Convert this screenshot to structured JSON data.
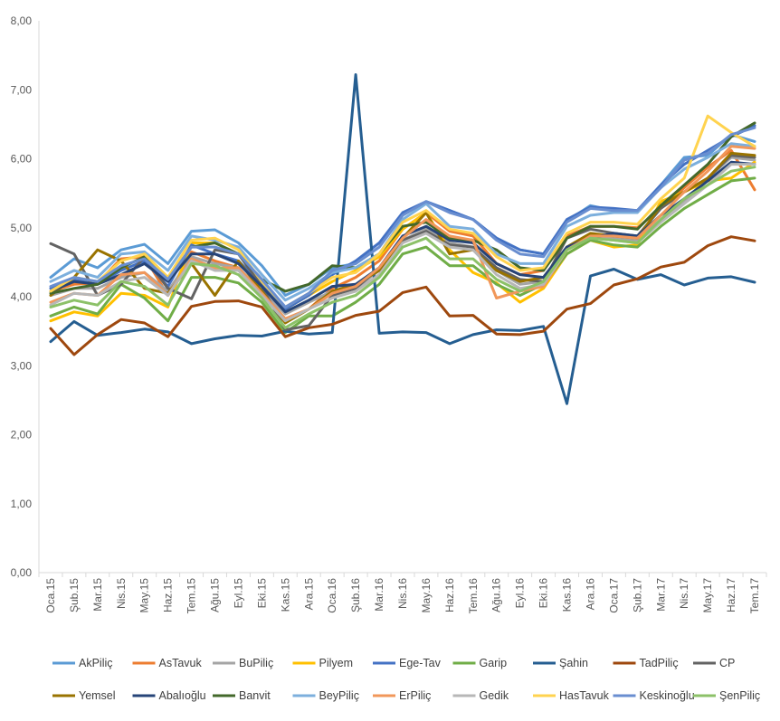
{
  "chart_data": {
    "type": "line",
    "title": "",
    "xlabel": "",
    "ylabel": "",
    "ylim": [
      0,
      8
    ],
    "y_ticks": [
      "0,00",
      "1,00",
      "2,00",
      "3,00",
      "4,00",
      "5,00",
      "6,00",
      "7,00",
      "8,00"
    ],
    "grid": "none",
    "legend_position": "bottom",
    "categories": [
      "Oca.15",
      "Şub.15",
      "Mar.15",
      "Nis.15",
      "May.15",
      "Haz.15",
      "Tem.15",
      "Ağu.15",
      "Eyl.15",
      "Eki.15",
      "Kas.15",
      "Ara.15",
      "Oca.16",
      "Şub.16",
      "Mar.16",
      "Nis.16",
      "May.16",
      "Haz.16",
      "Tem.16",
      "Ağu.16",
      "Eyl.16",
      "Eki.16",
      "Kas.16",
      "Ara.16",
      "Oca.17",
      "Şub.17",
      "Mar.17",
      "Nis.17",
      "May.17",
      "Haz.17",
      "Tem.17"
    ],
    "series": [
      {
        "name": "AkPiliç",
        "color": "#5B9BD5",
        "values": [
          4.28,
          4.55,
          4.42,
          4.68,
          4.76,
          4.48,
          4.95,
          4.97,
          4.78,
          4.45,
          4.02,
          4.18,
          4.42,
          4.48,
          4.72,
          5.18,
          5.38,
          5.25,
          5.12,
          4.85,
          4.68,
          4.62,
          5.1,
          5.32,
          5.25,
          5.25,
          5.62,
          6.02,
          6.05,
          6.35,
          6.25
        ]
      },
      {
        "name": "AsTavuk",
        "color": "#ED7D31",
        "values": [
          4.08,
          4.18,
          4.2,
          4.55,
          4.58,
          4.02,
          4.65,
          4.52,
          4.42,
          4.05,
          3.68,
          3.82,
          4.12,
          4.28,
          4.52,
          4.98,
          5.22,
          4.95,
          4.88,
          4.48,
          4.32,
          4.38,
          4.88,
          5.02,
          5.02,
          5.0,
          5.28,
          5.58,
          5.88,
          6.12,
          5.55
        ]
      },
      {
        "name": "BuPiliç",
        "color": "#A5A5A5",
        "values": [
          4.02,
          4.12,
          4.12,
          4.28,
          4.35,
          4.08,
          4.58,
          4.48,
          4.42,
          4.08,
          3.75,
          3.92,
          4.08,
          4.12,
          4.38,
          4.82,
          4.98,
          4.78,
          4.72,
          4.38,
          4.18,
          4.22,
          4.72,
          4.88,
          4.85,
          4.82,
          5.12,
          5.38,
          5.72,
          6.02,
          5.98
        ]
      },
      {
        "name": "Pilyem",
        "color": "#FFC000",
        "values": [
          3.65,
          3.78,
          3.72,
          4.05,
          4.02,
          3.85,
          4.78,
          4.78,
          4.62,
          4.22,
          3.82,
          4.02,
          4.22,
          4.38,
          4.58,
          4.98,
          5.22,
          4.68,
          4.35,
          4.2,
          3.92,
          4.12,
          4.62,
          4.82,
          4.72,
          4.75,
          5.38,
          5.52,
          5.68,
          5.72,
          5.95
        ]
      },
      {
        "name": "Ege-Tav",
        "color": "#4472C4",
        "values": [
          4.12,
          4.25,
          4.18,
          4.38,
          4.52,
          4.15,
          4.75,
          4.62,
          4.52,
          4.18,
          3.82,
          4.02,
          4.32,
          4.52,
          4.78,
          5.22,
          5.38,
          5.25,
          5.12,
          4.85,
          4.68,
          4.62,
          5.12,
          5.3,
          5.28,
          5.25,
          5.62,
          5.92,
          6.12,
          6.32,
          6.48
        ]
      },
      {
        "name": "Garip",
        "color": "#70AD47",
        "values": [
          3.72,
          3.85,
          3.75,
          4.18,
          3.98,
          3.65,
          4.28,
          4.28,
          4.2,
          3.92,
          3.48,
          3.72,
          3.72,
          3.92,
          4.18,
          4.62,
          4.72,
          4.45,
          4.45,
          4.18,
          4.02,
          4.18,
          4.62,
          4.82,
          4.75,
          4.72,
          5.02,
          5.28,
          5.48,
          5.68,
          5.72
        ]
      },
      {
        "name": "Şahin",
        "color": "#255E91",
        "values": [
          3.35,
          3.64,
          3.44,
          3.48,
          3.53,
          3.49,
          3.32,
          3.39,
          3.44,
          3.43,
          3.5,
          3.46,
          3.48,
          7.22,
          3.47,
          3.49,
          3.48,
          3.32,
          3.45,
          3.52,
          3.51,
          3.57,
          2.45,
          4.3,
          4.4,
          4.25,
          4.32,
          4.17,
          4.27,
          4.29,
          4.21
        ]
      },
      {
        "name": "TadPiliç",
        "color": "#9E480E",
        "values": [
          3.54,
          3.16,
          3.45,
          3.67,
          3.62,
          3.42,
          3.86,
          3.93,
          3.94,
          3.85,
          3.42,
          3.55,
          3.6,
          3.73,
          3.79,
          4.06,
          4.14,
          3.72,
          3.73,
          3.46,
          3.45,
          3.5,
          3.82,
          3.9,
          4.17,
          4.26,
          4.43,
          4.5,
          4.74,
          4.87,
          4.81
        ]
      },
      {
        "name": "CP",
        "color": "#636363",
        "values": [
          4.77,
          4.62,
          4.02,
          4.18,
          4.58,
          4.12,
          3.97,
          4.68,
          4.62,
          4.15,
          3.52,
          3.58,
          4.02,
          4.12,
          4.42,
          4.82,
          4.95,
          4.75,
          4.72,
          4.42,
          4.25,
          4.22,
          4.85,
          4.98,
          4.92,
          4.88,
          5.28,
          5.52,
          5.72,
          6.05,
          6.02
        ]
      },
      {
        "name": "Yemsel",
        "color": "#997300",
        "values": [
          4.02,
          4.28,
          4.68,
          4.52,
          4.12,
          4.05,
          4.48,
          4.02,
          4.52,
          4.08,
          3.62,
          3.82,
          4.08,
          4.18,
          4.38,
          4.85,
          5.22,
          4.62,
          4.68,
          4.38,
          4.22,
          4.28,
          4.72,
          4.92,
          4.88,
          4.85,
          5.32,
          5.52,
          5.72,
          6.08,
          6.05
        ]
      },
      {
        "name": "Abalıoğlu",
        "color": "#264478",
        "values": [
          4.08,
          4.22,
          4.18,
          4.32,
          4.48,
          4.22,
          4.62,
          4.62,
          4.48,
          4.15,
          3.78,
          3.95,
          4.15,
          4.18,
          4.42,
          4.88,
          5.02,
          4.82,
          4.78,
          4.48,
          4.32,
          4.28,
          4.72,
          4.85,
          4.92,
          4.88,
          5.18,
          5.42,
          5.68,
          5.95,
          5.92
        ]
      },
      {
        "name": "Banvit",
        "color": "#43682B",
        "values": [
          4.05,
          4.12,
          4.18,
          4.42,
          4.58,
          4.25,
          4.72,
          4.78,
          4.62,
          4.25,
          4.08,
          4.18,
          4.45,
          4.42,
          4.62,
          5.02,
          5.08,
          4.85,
          4.82,
          4.68,
          4.42,
          4.38,
          4.85,
          5.02,
          5.02,
          4.98,
          5.32,
          5.62,
          5.92,
          6.32,
          6.52
        ]
      },
      {
        "name": "BeyPiliç",
        "color": "#7CAFDD",
        "values": [
          4.22,
          4.38,
          4.28,
          4.62,
          4.65,
          4.38,
          4.88,
          4.82,
          4.72,
          4.32,
          3.95,
          4.12,
          4.35,
          4.42,
          4.62,
          5.12,
          5.35,
          5.02,
          4.98,
          4.62,
          4.48,
          4.48,
          5.02,
          5.18,
          5.22,
          5.22,
          5.58,
          5.85,
          6.02,
          6.22,
          6.18
        ]
      },
      {
        "name": "ErPiliç",
        "color": "#F1975A",
        "values": [
          3.92,
          4.05,
          4.02,
          4.32,
          4.35,
          4.02,
          4.55,
          4.42,
          4.42,
          4.05,
          3.68,
          3.82,
          4.05,
          4.15,
          4.42,
          4.85,
          5.12,
          4.88,
          4.82,
          3.98,
          4.08,
          4.15,
          4.68,
          4.88,
          4.88,
          4.85,
          5.18,
          5.52,
          5.82,
          6.18,
          6.15
        ]
      },
      {
        "name": "Gedik",
        "color": "#B7B7B7",
        "values": [
          3.88,
          4.05,
          4.02,
          4.22,
          4.28,
          4.02,
          4.52,
          4.38,
          4.38,
          4.02,
          3.65,
          3.82,
          3.98,
          4.08,
          4.32,
          4.78,
          4.92,
          4.72,
          4.68,
          4.32,
          4.12,
          4.18,
          4.68,
          4.85,
          4.82,
          4.78,
          5.08,
          5.35,
          5.62,
          5.92,
          5.92
        ]
      },
      {
        "name": "HasTavuk",
        "color": "#FFD34F",
        "values": [
          4.08,
          4.28,
          4.22,
          4.52,
          4.62,
          4.28,
          4.82,
          4.85,
          4.68,
          4.22,
          3.85,
          4.05,
          4.28,
          4.35,
          4.62,
          5.08,
          5.25,
          4.98,
          4.92,
          4.58,
          4.38,
          4.42,
          4.92,
          5.08,
          5.08,
          5.05,
          5.42,
          5.72,
          6.62,
          6.38,
          6.18
        ]
      },
      {
        "name": "Keskinoğlu",
        "color": "#698ED0",
        "values": [
          4.15,
          4.28,
          4.22,
          4.45,
          4.55,
          4.25,
          4.72,
          4.72,
          4.62,
          4.25,
          3.85,
          4.05,
          4.38,
          4.48,
          4.72,
          5.18,
          5.38,
          5.22,
          5.12,
          4.82,
          4.62,
          4.58,
          5.08,
          5.28,
          5.25,
          5.25,
          5.58,
          5.98,
          6.08,
          6.35,
          6.45
        ]
      },
      {
        "name": "ŞenPiliç",
        "color": "#8CC168",
        "values": [
          3.85,
          3.95,
          3.88,
          4.22,
          4.15,
          3.88,
          4.48,
          4.45,
          4.32,
          3.98,
          3.55,
          3.75,
          3.92,
          4.02,
          4.28,
          4.72,
          4.85,
          4.55,
          4.55,
          4.25,
          4.08,
          4.22,
          4.68,
          4.85,
          4.82,
          4.78,
          5.12,
          5.42,
          5.62,
          5.82,
          5.88
        ]
      }
    ]
  }
}
